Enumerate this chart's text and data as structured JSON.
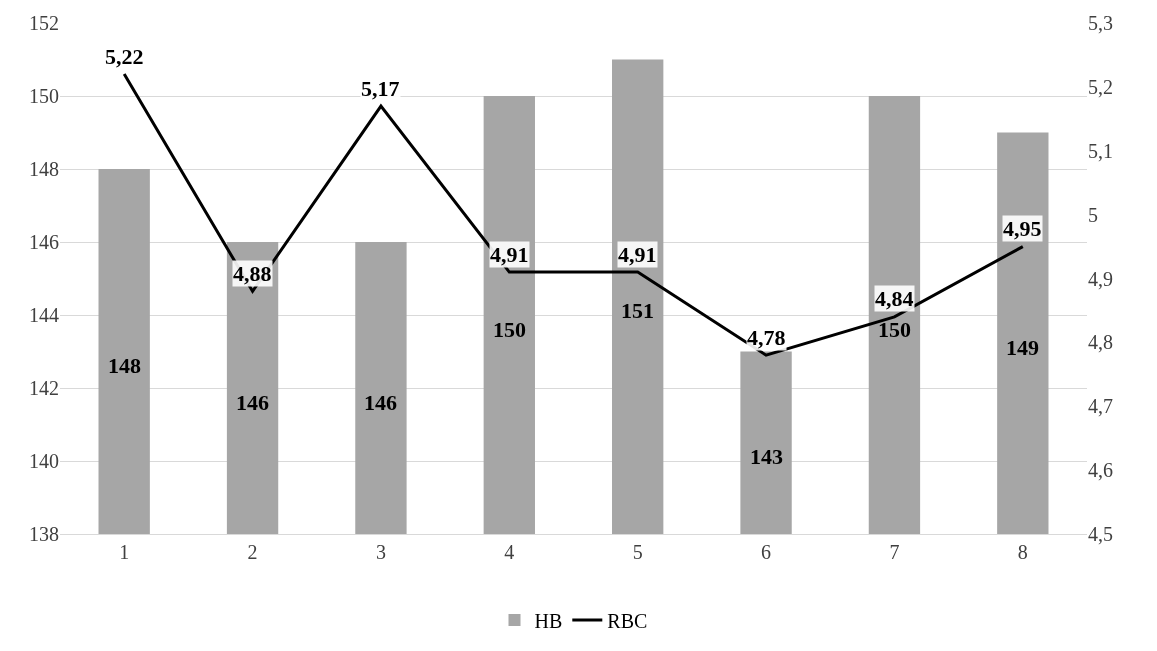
{
  "chart_data": {
    "type": "bar",
    "categories": [
      "1",
      "2",
      "3",
      "4",
      "5",
      "6",
      "7",
      "8"
    ],
    "series": [
      {
        "name": "HB",
        "color": "#a6a6a6",
        "values": [
          148,
          146,
          146,
          150,
          151,
          143,
          150,
          149
        ],
        "value_labels": [
          "148",
          "146",
          "146",
          "150",
          "151",
          "143",
          "150",
          "149"
        ]
      },
      {
        "name": "RBC",
        "type": "line",
        "axis": "y2",
        "color": "#000000",
        "values": [
          5.22,
          4.88,
          5.17,
          4.91,
          4.91,
          4.78,
          4.84,
          4.95
        ],
        "value_labels": [
          "5,22",
          "4,88",
          "5,17",
          "4,91",
          "4,91",
          "4,78",
          "4,84",
          "4,95"
        ]
      }
    ],
    "ylim": [
      138,
      152
    ],
    "yticks": [
      138,
      140,
      142,
      144,
      146,
      148,
      150,
      152
    ],
    "y2lim": [
      4.5,
      5.3
    ],
    "y2ticks": [
      {
        "value": 4.5,
        "label": "4,5"
      },
      {
        "value": 4.6,
        "label": "4,6"
      },
      {
        "value": 4.7,
        "label": "4,7"
      },
      {
        "value": 4.8,
        "label": "4,8"
      },
      {
        "value": 4.9,
        "label": "4,9"
      },
      5,
      {
        "value": 5.1,
        "label": "5,1"
      },
      {
        "value": 5.2,
        "label": "5,2"
      },
      {
        "value": 5.3,
        "label": "5,3"
      }
    ],
    "grid": "y",
    "legend": "bottom",
    "marker": "none",
    "line_style": "solid"
  }
}
